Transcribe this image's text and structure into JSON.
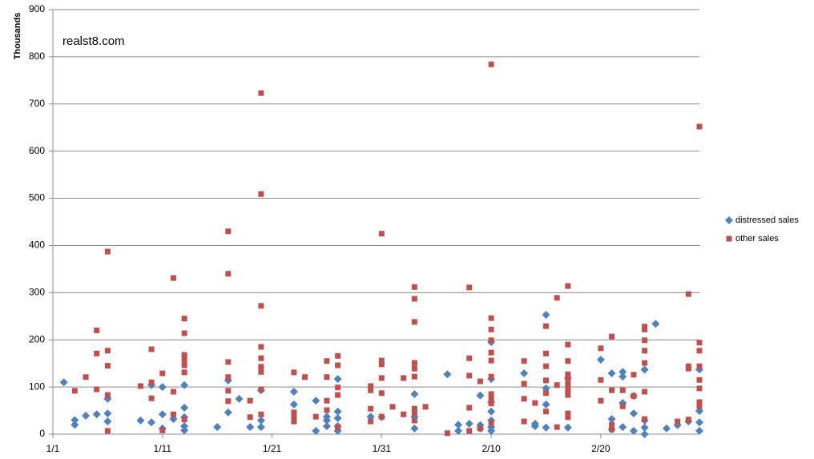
{
  "chart_data": {
    "type": "scatter",
    "y_label": "Thousands",
    "annotation": "realst8.com",
    "xlim": [
      0,
      59
    ],
    "xticks": [
      {
        "value": 0,
        "label": "1/1"
      },
      {
        "value": 10,
        "label": "1/11"
      },
      {
        "value": 20,
        "label": "1/21"
      },
      {
        "value": 30,
        "label": "1/31"
      },
      {
        "value": 40,
        "label": "2/10"
      },
      {
        "value": 50,
        "label": "2/20"
      }
    ],
    "ylim": [
      0,
      900
    ],
    "yticks": [
      0,
      100,
      200,
      300,
      400,
      500,
      600,
      700,
      800,
      900
    ],
    "grid": true,
    "legend": "right",
    "series": [
      {
        "name": "distressed sales",
        "color": "#4f81bd",
        "marker": "diamond",
        "x": [
          1,
          2,
          2,
          3,
          4,
          5,
          5,
          5,
          8,
          9,
          9,
          10,
          10,
          10,
          11,
          12,
          12,
          12,
          12,
          12,
          15,
          16,
          16,
          17,
          18,
          19,
          19,
          19,
          22,
          22,
          24,
          24,
          25,
          25,
          25,
          26,
          26,
          26,
          26,
          26,
          29,
          30,
          33,
          33,
          33,
          36,
          37,
          37,
          38,
          39,
          39,
          39,
          40,
          40,
          40,
          40,
          40,
          40,
          40,
          43,
          44,
          44,
          45,
          45,
          45,
          45,
          47,
          47,
          50,
          51,
          51,
          51,
          52,
          52,
          52,
          52,
          53,
          53,
          53,
          54,
          54,
          54,
          54,
          55,
          56,
          57,
          58,
          59,
          59,
          59,
          59
        ],
        "values": [
          110,
          30,
          20,
          39,
          42,
          75,
          44,
          27,
          29,
          25,
          104,
          100,
          42,
          12,
          32,
          104,
          56,
          36,
          17,
          8,
          15,
          114,
          46,
          75,
          15,
          93,
          29,
          15,
          90,
          63,
          71,
          7,
          37,
          29,
          17,
          117,
          48,
          34,
          17,
          7,
          37,
          36,
          85,
          37,
          12,
          127,
          20,
          7,
          22,
          82,
          19,
          12,
          195,
          117,
          68,
          48,
          29,
          15,
          7,
          129,
          22,
          17,
          253,
          97,
          63,
          14,
          119,
          14,
          158,
          129,
          32,
          10,
          132,
          122,
          66,
          15,
          81,
          44,
          7,
          137,
          29,
          14,
          0,
          234,
          12,
          19,
          27,
          137,
          49,
          25,
          7
        ]
      },
      {
        "name": "other sales",
        "color": "#c0504d",
        "marker": "square",
        "x": [
          2,
          3,
          4,
          4,
          4,
          5,
          5,
          5,
          5,
          5,
          8,
          9,
          9,
          9,
          10,
          10,
          11,
          11,
          11,
          12,
          12,
          12,
          12,
          12,
          12,
          12,
          16,
          16,
          16,
          16,
          16,
          16,
          18,
          18,
          19,
          19,
          19,
          19,
          19,
          19,
          19,
          19,
          19,
          22,
          22,
          22,
          22,
          23,
          24,
          25,
          25,
          25,
          25,
          26,
          26,
          26,
          26,
          26,
          29,
          29,
          29,
          29,
          30,
          30,
          30,
          30,
          30,
          30,
          31,
          32,
          32,
          33,
          33,
          33,
          33,
          33,
          33,
          33,
          33,
          33,
          34,
          36,
          38,
          38,
          38,
          38,
          38,
          39,
          39,
          40,
          40,
          40,
          40,
          40,
          40,
          40,
          40,
          40,
          40,
          40,
          43,
          43,
          43,
          43,
          44,
          45,
          45,
          45,
          45,
          45,
          45,
          46,
          46,
          46,
          47,
          47,
          47,
          47,
          47,
          47,
          47,
          47,
          47,
          47,
          50,
          50,
          50,
          51,
          51,
          51,
          51,
          52,
          52,
          53,
          53,
          54,
          54,
          54,
          54,
          54,
          54,
          54,
          57,
          58,
          58,
          58,
          58,
          59,
          59,
          59,
          59,
          59,
          59,
          59,
          59
        ],
        "values": [
          92,
          121,
          220,
          171,
          95,
          387,
          177,
          145,
          83,
          7,
          102,
          180,
          110,
          76,
          129,
          8,
          331,
          90,
          42,
          245,
          214,
          168,
          158,
          146,
          131,
          31,
          430,
          340,
          153,
          121,
          92,
          70,
          71,
          36,
          723,
          509,
          272,
          185,
          161,
          143,
          132,
          95,
          42,
          131,
          46,
          37,
          27,
          121,
          37,
          155,
          121,
          71,
          51,
          166,
          146,
          99,
          83,
          15,
          102,
          93,
          54,
          27,
          425,
          156,
          148,
          119,
          87,
          37,
          58,
          119,
          42,
          312,
          287,
          238,
          151,
          139,
          122,
          54,
          46,
          29,
          58,
          2,
          311,
          161,
          124,
          56,
          7,
          112,
          12,
          784,
          246,
          222,
          199,
          173,
          156,
          122,
          85,
          75,
          65,
          24,
          155,
          107,
          75,
          27,
          66,
          229,
          171,
          144,
          114,
          87,
          48,
          289,
          104,
          15,
          314,
          190,
          155,
          127,
          115,
          104,
          93,
          83,
          44,
          36,
          182,
          115,
          71,
          207,
          93,
          20,
          10,
          93,
          59,
          126,
          81,
          228,
          222,
          199,
          177,
          151,
          90,
          32,
          27,
          297,
          144,
          139,
          31,
          652,
          194,
          177,
          144,
          115,
          97,
          68,
          59
        ]
      }
    ]
  }
}
